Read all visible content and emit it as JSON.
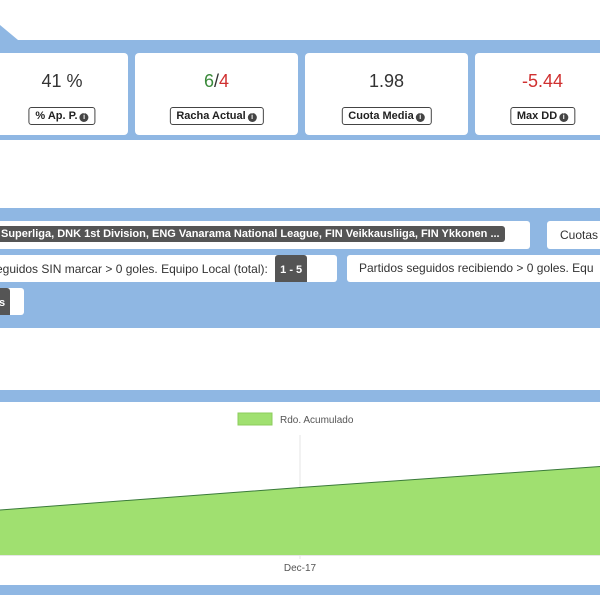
{
  "cards": [
    {
      "value": "41 %",
      "label": "% Ap. P."
    },
    {
      "value_parts": [
        "6",
        "/",
        "4"
      ],
      "label": "Racha Actual"
    },
    {
      "value": "1.98",
      "label": "Cuota Media"
    },
    {
      "value": "-5.44",
      "label": "Max DD"
    }
  ],
  "filters": {
    "leagues": "Superliga, DNK 1st Division, ENG Vanarama National League, FIN Veikkausliiga, FIN Ykkonen ...",
    "odds": "Cuotas",
    "rule1": {
      "text": "eguidos SIN marcar > 0 goles. Equipo Local (total):",
      "chip": "1 - 5"
    },
    "rule2": {
      "text": "Partidos seguidos recibiendo > 0 goles. Equ"
    },
    "rule3": {
      "chip": "s"
    }
  },
  "chart_data": {
    "type": "area",
    "x": [
      null,
      "Dec-17",
      null
    ],
    "series": [
      {
        "name": "Rdo. Acumulado",
        "color": "#a0e070",
        "line_color": "#3a7a3a",
        "values": [
          3,
          4.5,
          5.9
        ]
      }
    ],
    "ylim": [
      0,
      8
    ]
  }
}
